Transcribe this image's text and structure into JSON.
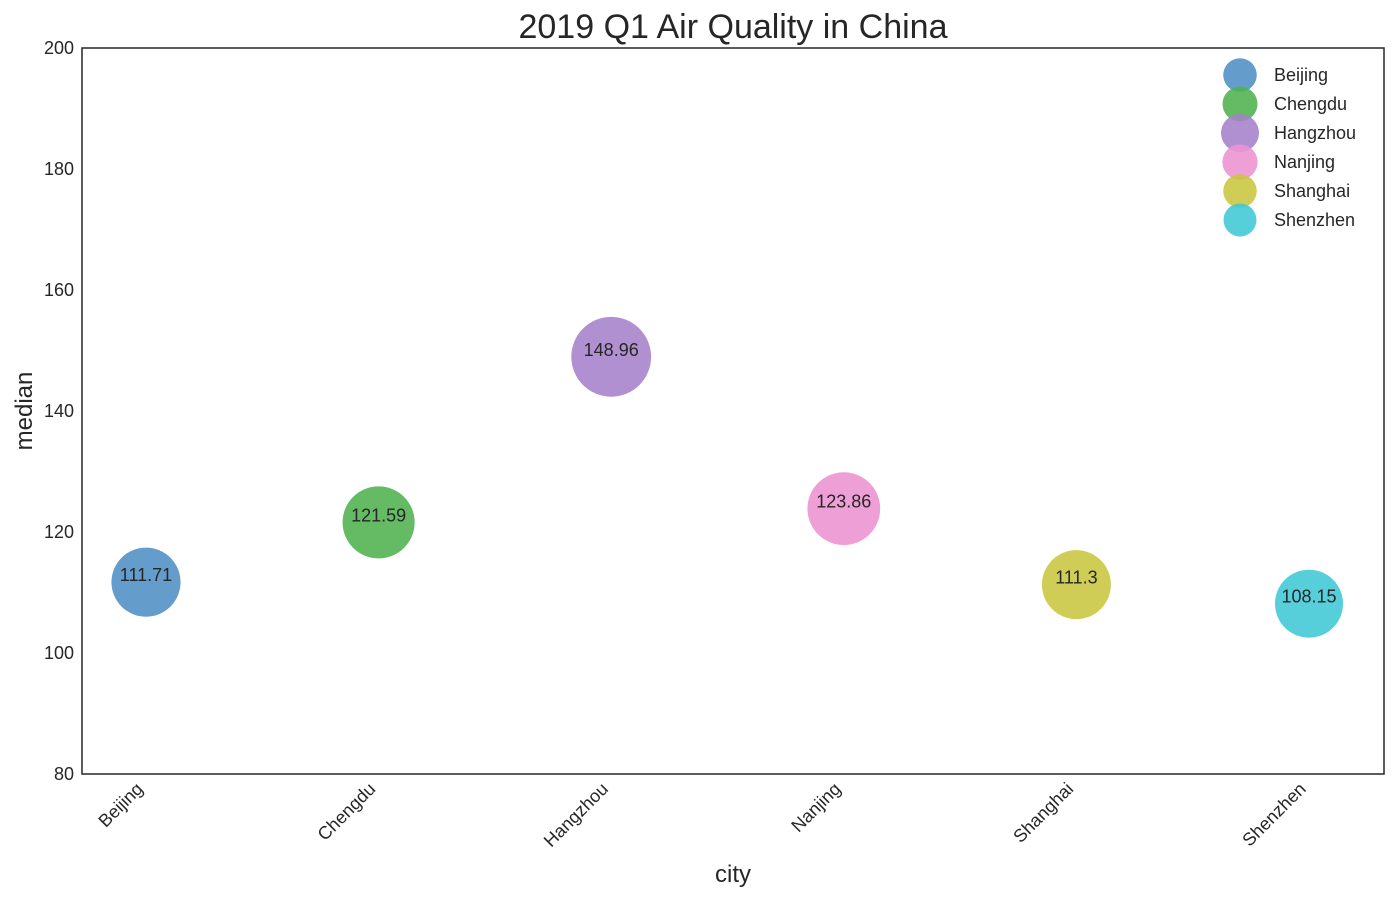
{
  "chart_data": {
    "type": "scatter",
    "title": "2019 Q1 Air Quality in China",
    "xlabel": "city",
    "ylabel": "median",
    "categories": [
      "Beijing",
      "Chengdu",
      "Hangzhou",
      "Nanjing",
      "Shanghai",
      "Shenzhen"
    ],
    "values": [
      111.71,
      121.59,
      148.96,
      123.86,
      111.3,
      108.15
    ],
    "point_labels": [
      "111.71",
      "121.59",
      "148.96",
      "123.86",
      "111.3",
      "108.15"
    ],
    "colors": [
      "#4f90c4",
      "#4fb24f",
      "#a581c9",
      "#ec93d0",
      "#c8c63e",
      "#3fc8d6"
    ],
    "ylim": [
      80,
      200
    ],
    "yticks": [
      "80",
      "100",
      "120",
      "140",
      "160",
      "180",
      "200"
    ],
    "legend": {
      "placement": "top-right",
      "entries": [
        "Beijing",
        "Chengdu",
        "Hangzhou",
        "Nanjing",
        "Shanghai",
        "Shenzhen"
      ]
    },
    "grid": false
  }
}
